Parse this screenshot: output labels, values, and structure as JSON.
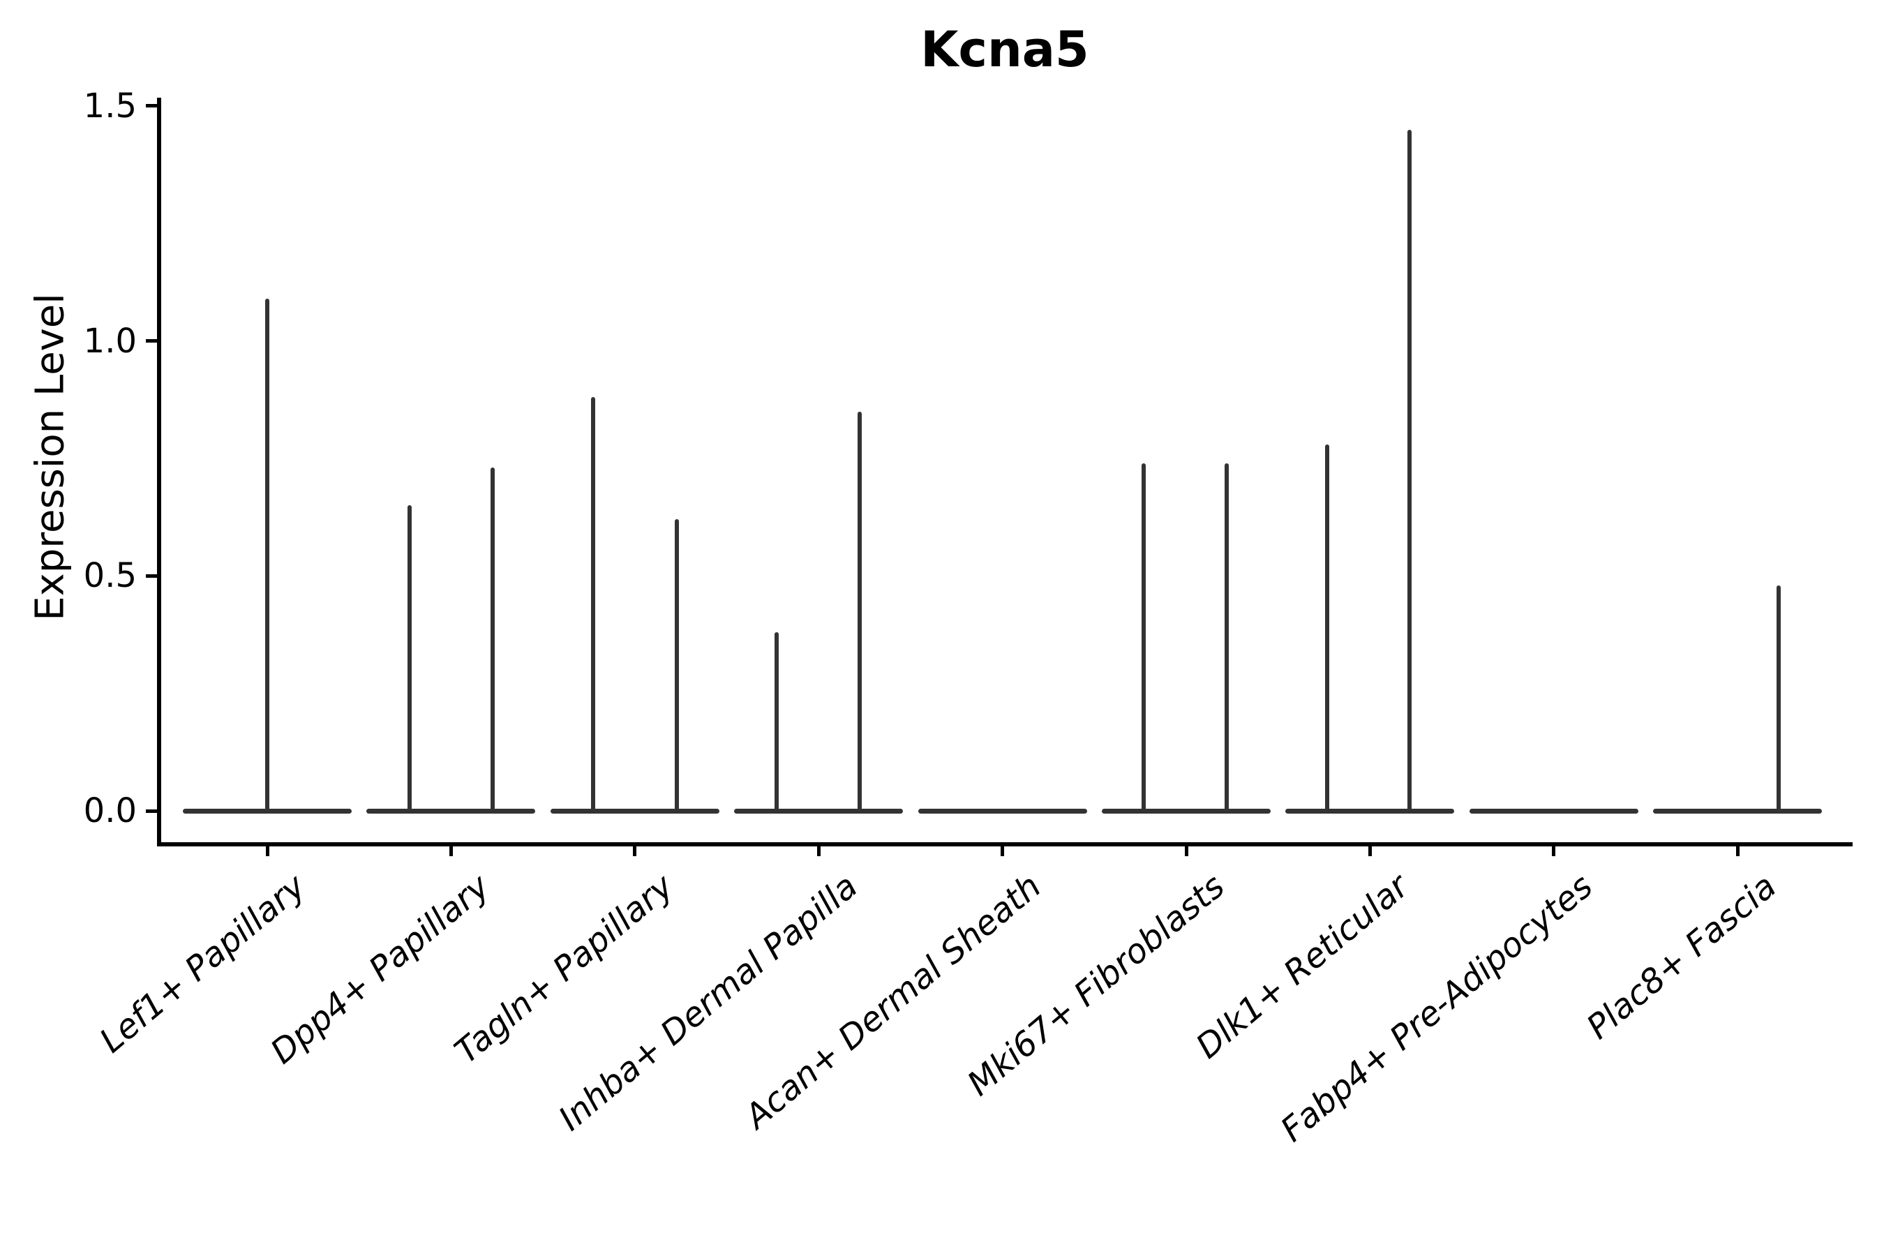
{
  "figure": {
    "title": "Kcna5"
  },
  "axes": {
    "ylabel": "Expression Level",
    "y_tick_labels": [
      "0.0",
      "0.5",
      "1.0",
      "1.5"
    ],
    "x_tick_labels": [
      "Lef1+ Papillary",
      "Dpp4+ Papillary",
      "Tagln+ Papillary",
      "Inhba+ Dermal Papilla",
      "Acan+ Dermal Sheath",
      "Mki67+ Fibroblasts",
      "Dlk1+ Reticular",
      "Fabp4+ Pre-Adipocytes",
      "Plac8+ Fascia"
    ]
  },
  "colors": {
    "violin_line": "#333333",
    "spine": "#000000",
    "text": "#000000",
    "background": "#ffffff"
  },
  "chart_data": {
    "type": "violin",
    "title": "Kcna5",
    "xlabel": "",
    "ylabel": "Expression Level",
    "ylim": [
      0,
      1.52
    ],
    "yticks": [
      0.0,
      0.5,
      1.0,
      1.5
    ],
    "grid": false,
    "legend": false,
    "note": "Flattened single-cell violins: nearly all mass at 0 (flat baseline per category) with thin spikes rising to the max expression value; spike offset is the fraction of category spacing from the category center.",
    "categories": [
      "Lef1+ Papillary",
      "Dpp4+ Papillary",
      "Tagln+ Papillary",
      "Inhba+ Dermal Papilla",
      "Acan+ Dermal Sheath",
      "Mki67+ Fibroblasts",
      "Dlk1+ Reticular",
      "Fabp4+ Pre-Adipocytes",
      "Plac8+ Fascia"
    ],
    "series": [
      {
        "category": "Lef1+ Papillary",
        "baseline": 0.0,
        "spikes": [
          {
            "offset": 0.0,
            "max": 1.09
          }
        ]
      },
      {
        "category": "Dpp4+ Papillary",
        "baseline": 0.0,
        "spikes": [
          {
            "offset": -0.227,
            "max": 0.65
          },
          {
            "offset": 0.227,
            "max": 0.73
          }
        ]
      },
      {
        "category": "Tagln+ Papillary",
        "baseline": 0.0,
        "spikes": [
          {
            "offset": -0.227,
            "max": 0.88
          },
          {
            "offset": 0.227,
            "max": 0.62
          }
        ]
      },
      {
        "category": "Inhba+ Dermal Papilla",
        "baseline": 0.0,
        "spikes": [
          {
            "offset": -0.227,
            "max": 0.38
          },
          {
            "offset": 0.225,
            "max": 0.85
          }
        ]
      },
      {
        "category": "Acan+ Dermal Sheath",
        "baseline": 0.0,
        "spikes": []
      },
      {
        "category": "Mki67+ Fibroblasts",
        "baseline": 0.0,
        "spikes": [
          {
            "offset": -0.232,
            "max": 0.74
          },
          {
            "offset": 0.22,
            "max": 0.74
          }
        ]
      },
      {
        "category": "Dlk1+ Reticular",
        "baseline": 0.0,
        "spikes": [
          {
            "offset": -0.235,
            "max": 0.78
          },
          {
            "offset": 0.213,
            "max": 1.45
          }
        ]
      },
      {
        "category": "Fabp4+ Pre-Adipocytes",
        "baseline": 0.0,
        "spikes": []
      },
      {
        "category": "Plac8+ Fascia",
        "baseline": 0.0,
        "spikes": [
          {
            "offset": 0.225,
            "max": 0.48
          }
        ]
      }
    ]
  }
}
